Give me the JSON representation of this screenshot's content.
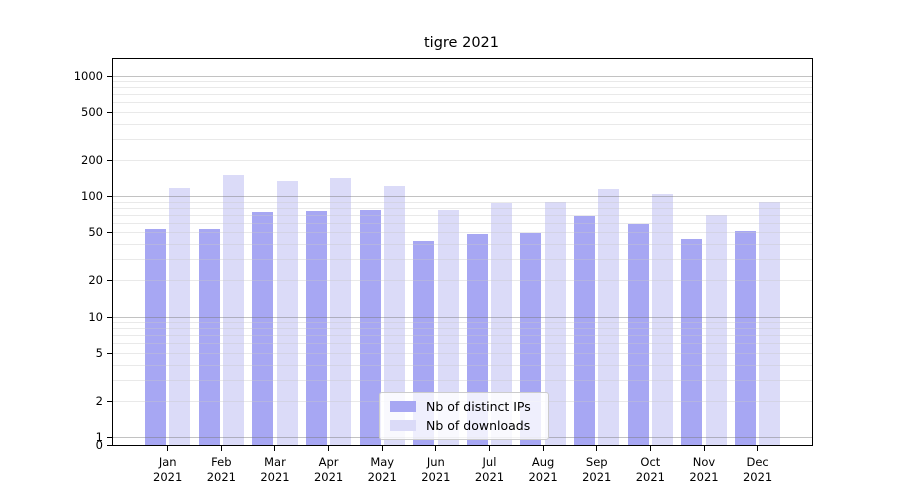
{
  "window": {
    "title": "tigre 2021"
  },
  "chart_data": {
    "type": "bar",
    "title": "tigre 2021",
    "categories": [
      "Jan",
      "Feb",
      "Mar",
      "Apr",
      "May",
      "Jun",
      "Jul",
      "Aug",
      "Sep",
      "Oct",
      "Nov",
      "Dec"
    ],
    "category_year": "2021",
    "series": [
      {
        "name": "Nb of distinct IPs",
        "color": "#a7a7f3",
        "values": [
          53,
          53,
          74,
          75,
          77,
          42,
          48,
          49,
          68,
          59,
          44,
          51
        ]
      },
      {
        "name": "Nb of downloads",
        "color": "#dbdbf8",
        "values": [
          116,
          150,
          134,
          142,
          122,
          77,
          88,
          90,
          114,
          103,
          69,
          90
        ]
      }
    ],
    "y_axis": {
      "scale": "symlog",
      "tick_values": [
        1000,
        500,
        200,
        100,
        50,
        20,
        10,
        5,
        2,
        1,
        0
      ],
      "tick_labels": [
        "1000",
        "500",
        "200",
        "100",
        "50",
        "20",
        "10",
        "5",
        "2",
        "1",
        "0"
      ],
      "min": 0,
      "top": 1371
    },
    "x_axis": {
      "tick_labels_line1": [
        "Jan",
        "Feb",
        "Mar",
        "Apr",
        "May",
        "Jun",
        "Jul",
        "Aug",
        "Sep",
        "Oct",
        "Nov",
        "Dec"
      ],
      "tick_labels_line2": "2021"
    },
    "grid": {
      "on": true,
      "drawn_above_bars": true,
      "major_values": [
        1,
        10,
        100,
        1000
      ],
      "minor_values": [
        2,
        3,
        4,
        5,
        6,
        7,
        8,
        9,
        20,
        30,
        40,
        50,
        60,
        70,
        80,
        90,
        200,
        300,
        400,
        500,
        600,
        700,
        800,
        900
      ],
      "major_color": "rgba(120,120,120,0.45)",
      "minor_color": "rgba(200,200,200,0.40)"
    },
    "legend": {
      "position": "bottom-center",
      "entries": [
        {
          "label": "Nb of distinct IPs"
        },
        {
          "label": "Nb of downloads"
        }
      ]
    }
  }
}
